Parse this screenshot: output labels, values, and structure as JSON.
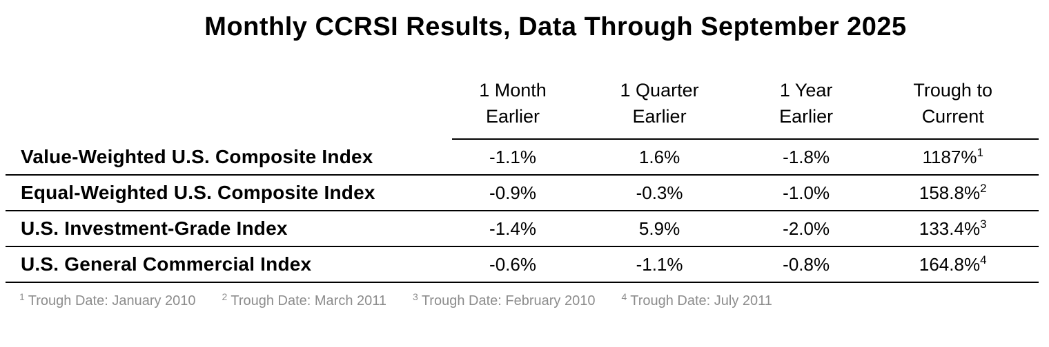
{
  "chart_data": {
    "type": "table",
    "title": "Monthly CCRSI Results, Data Through September 2025",
    "column_headers": [
      {
        "top": "1 Month",
        "bottom": "Earlier"
      },
      {
        "top": "1 Quarter",
        "bottom": "Earlier"
      },
      {
        "top": "1 Year",
        "bottom": "Earlier"
      },
      {
        "top": "Trough to",
        "bottom": "Current"
      }
    ],
    "rows": [
      {
        "label": "Value-Weighted U.S. Composite Index",
        "one_month": "-1.1%",
        "one_quarter": "1.6%",
        "one_year": "-1.8%",
        "trough_to_current": "1187%",
        "footnote_marker": "1"
      },
      {
        "label": "Equal-Weighted U.S. Composite Index",
        "one_month": "-0.9%",
        "one_quarter": "-0.3%",
        "one_year": "-1.0%",
        "trough_to_current": "158.8%",
        "footnote_marker": "2"
      },
      {
        "label": "U.S. Investment-Grade Index",
        "one_month": "-1.4%",
        "one_quarter": "5.9%",
        "one_year": "-2.0%",
        "trough_to_current": "133.4%",
        "footnote_marker": "3"
      },
      {
        "label": "U.S. General Commercial Index",
        "one_month": "-0.6%",
        "one_quarter": "-1.1%",
        "one_year": "-0.8%",
        "trough_to_current": "164.8%",
        "footnote_marker": "4"
      }
    ],
    "footnotes": [
      {
        "marker": "1",
        "text": "Trough Date: January 2010"
      },
      {
        "marker": "2",
        "text": "Trough Date: March 2011"
      },
      {
        "marker": "3",
        "text": "Trough Date: February 2010"
      },
      {
        "marker": "4",
        "text": "Trough Date: July 2011"
      }
    ]
  },
  "colors": {
    "text": "#000000",
    "rule_lines": "#000000",
    "footnote_text": "#8c8c8c",
    "background": "#ffffff"
  }
}
